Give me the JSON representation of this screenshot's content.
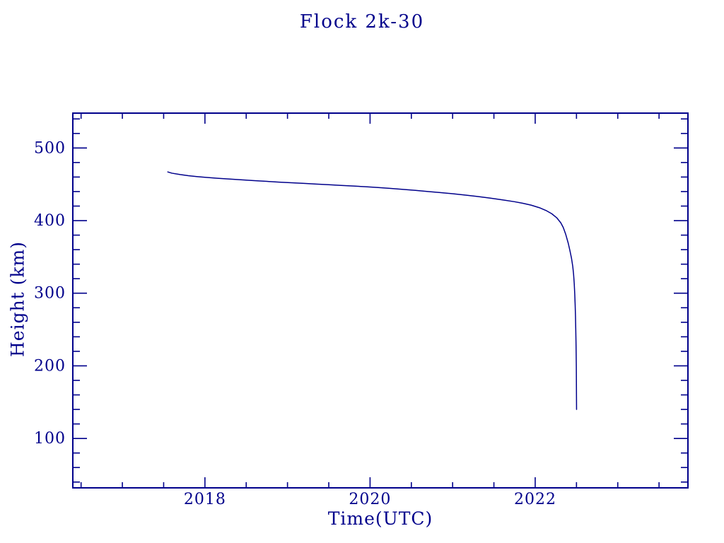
{
  "page": {
    "background_color": "#ffffff",
    "accent_color": "#00008B"
  },
  "chart_data": {
    "type": "line",
    "title": "Flock 2k-30",
    "xlabel": "Time(UTC)",
    "ylabel": "Height (km)",
    "xlim": [
      2016.4,
      2023.85
    ],
    "ylim": [
      32,
      548
    ],
    "grid": false,
    "legend": null,
    "line_color": "#00008B",
    "axis_color": "#00008B",
    "x_major_ticks": [
      {
        "value": 2018,
        "label": "2018"
      },
      {
        "value": 2020,
        "label": "2020"
      },
      {
        "value": 2022,
        "label": "2022"
      }
    ],
    "x_minor_tick_step": 0.5,
    "x_minor_tick_start": 2016.5,
    "x_minor_tick_end": 2023.5,
    "y_major_ticks": [
      {
        "value": 100,
        "label": "100"
      },
      {
        "value": 200,
        "label": "200"
      },
      {
        "value": 300,
        "label": "300"
      },
      {
        "value": 400,
        "label": "400"
      },
      {
        "value": 500,
        "label": "500"
      }
    ],
    "y_minor_tick_step": 20,
    "y_minor_tick_start": 40,
    "y_minor_tick_end": 540,
    "series": [
      {
        "name": "orbital-height",
        "points": [
          [
            2017.55,
            467.0
          ],
          [
            2017.6,
            465.3
          ],
          [
            2017.7,
            463.4
          ],
          [
            2017.8,
            461.8
          ],
          [
            2017.9,
            460.6
          ],
          [
            2018.0,
            459.6
          ],
          [
            2018.15,
            458.3
          ],
          [
            2018.3,
            457.2
          ],
          [
            2018.45,
            456.1
          ],
          [
            2018.6,
            455.0
          ],
          [
            2018.75,
            454.0
          ],
          [
            2018.9,
            453.0
          ],
          [
            2019.05,
            452.1
          ],
          [
            2019.2,
            451.2
          ],
          [
            2019.35,
            450.3
          ],
          [
            2019.5,
            449.4
          ],
          [
            2019.65,
            448.5
          ],
          [
            2019.8,
            447.6
          ],
          [
            2019.95,
            446.6
          ],
          [
            2020.1,
            445.5
          ],
          [
            2020.25,
            444.3
          ],
          [
            2020.4,
            443.0
          ],
          [
            2020.55,
            441.6
          ],
          [
            2020.7,
            440.1
          ],
          [
            2020.85,
            438.6
          ],
          [
            2021.0,
            437.0
          ],
          [
            2021.15,
            435.2
          ],
          [
            2021.3,
            433.2
          ],
          [
            2021.45,
            431.0
          ],
          [
            2021.6,
            428.6
          ],
          [
            2021.75,
            426.0
          ],
          [
            2021.85,
            423.9
          ],
          [
            2021.95,
            421.3
          ],
          [
            2022.05,
            417.8
          ],
          [
            2022.13,
            414.0
          ],
          [
            2022.2,
            409.5
          ],
          [
            2022.26,
            404.0
          ],
          [
            2022.31,
            397.0
          ],
          [
            2022.34,
            390.5
          ],
          [
            2022.37,
            381.0
          ],
          [
            2022.4,
            369.0
          ],
          [
            2022.42,
            359.0
          ],
          [
            2022.44,
            348.0
          ],
          [
            2022.455,
            337.0
          ],
          [
            2022.465,
            326.0
          ],
          [
            2022.473,
            313.0
          ],
          [
            2022.479,
            299.0
          ],
          [
            2022.484,
            284.0
          ],
          [
            2022.488,
            268.0
          ],
          [
            2022.491,
            252.0
          ],
          [
            2022.494,
            234.0
          ],
          [
            2022.496,
            218.0
          ],
          [
            2022.498,
            199.0
          ],
          [
            2022.499,
            180.0
          ],
          [
            2022.5,
            158.0
          ],
          [
            2022.501,
            140.0
          ]
        ]
      }
    ]
  }
}
